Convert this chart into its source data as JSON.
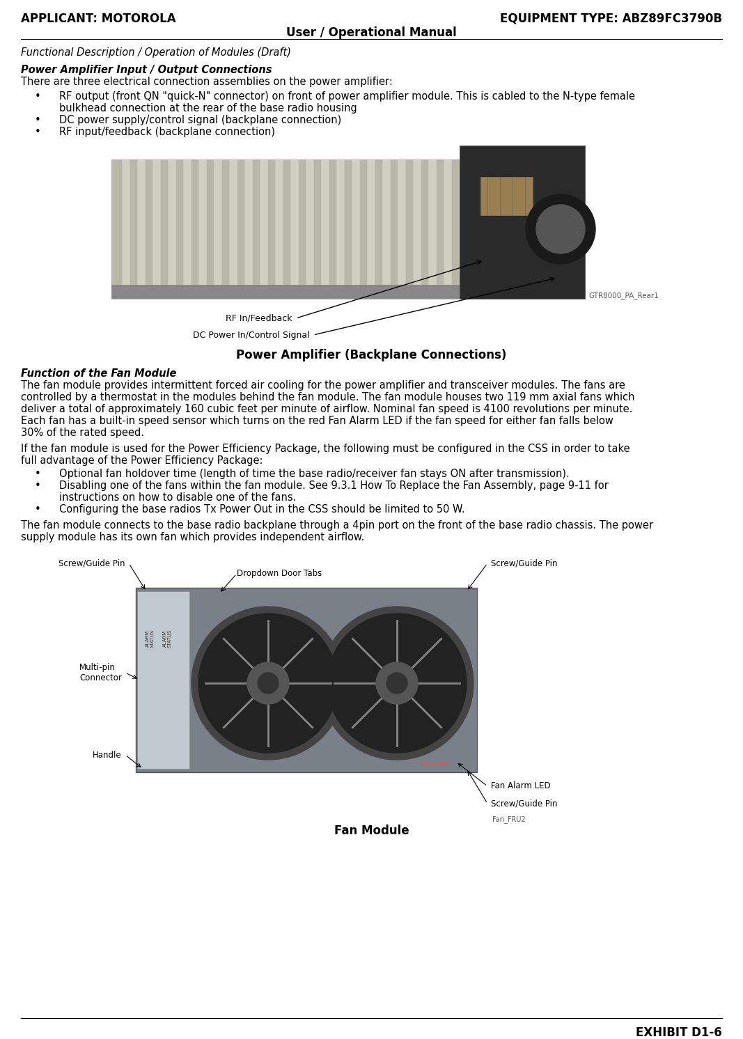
{
  "header_left": "APPLICANT: MOTOROLA",
  "header_right": "EQUIPMENT TYPE: ABZ89FC3790B",
  "header_center": "User / Operational Manual",
  "footer_right": "EXHIBIT D1-6",
  "section1_title": "Functional Description / Operation of Modules (Draft)",
  "section2_title": "Power Amplifier Input / Output Connections",
  "section2_intro": "There are three electrical connection assemblies on the power amplifier:",
  "section2_bullet1a": "RF output (front QN \"quick-N\" connector) on front of power amplifier module. This is cabled to the N-type female",
  "section2_bullet1b": "bulkhead connection at the rear of the base radio housing",
  "section2_bullet2": "DC power supply/control signal (backplane connection)",
  "section2_bullet3": "RF input/feedback (backplane connection)",
  "fig1_caption": "Power Amplifier (Backplane Connections)",
  "fig1_label1": "RF In/Feedback",
  "fig1_label2": "DC Power In/Control Signal",
  "fig1_ref": "GTR8000_PA_Rear1",
  "section3_title": "Function of the Fan Module",
  "section3_para1_lines": [
    "The fan module provides intermittent forced air cooling for the power amplifier and transceiver modules. The fans are",
    "controlled by a thermostat in the modules behind the fan module. The fan module houses two 119 mm axial fans which",
    "deliver a total of approximately 160 cubic feet per minute of airflow. Nominal fan speed is 4100 revolutions per minute.",
    "Each fan has a built-in speed sensor which turns on the red Fan Alarm LED if the fan speed for either fan falls below",
    "30% of the rated speed."
  ],
  "section3_para2_lines": [
    "If the fan module is used for the Power Efficiency Package, the following must be configured in the CSS in order to take",
    "full advantage of the Power Efficiency Package:"
  ],
  "section3_bullet1": "Optional fan holdover time (length of time the base radio/receiver fan stays ON after transmission).",
  "section3_bullet2a": "Disabling one of the fans within the fan module. See 9.3.1 How To Replace the Fan Assembly, page 9-11 for",
  "section3_bullet2b": "instructions on how to disable one of the fans.",
  "section3_bullet3": "Configuring the base radios Tx Power Out in the CSS should be limited to 50 W.",
  "section3_para3_lines": [
    "The fan module connects to the base radio backplane through a 4pin port on the front of the base radio chassis. The power",
    "supply module has its own fan which provides independent airflow."
  ],
  "fig2_caption": "Fan Module",
  "fig2_label_tl": "Screw/Guide Pin",
  "fig2_label_tc": "Dropdown Door Tabs",
  "fig2_label_tr": "Screw/Guide Pin",
  "fig2_label_ml": "Multi-pin\nConnector",
  "fig2_label_bl": "Handle",
  "fig2_label_br1": "Fan Alarm LED",
  "fig2_label_br2": "Screw/Guide Pin",
  "fig2_ref": "Fan_FRU2",
  "bg_color": "#ffffff",
  "text_color": "#000000",
  "body_fs": 10.5,
  "header_fs": 12,
  "caption_fs": 12,
  "small_fs": 8.5
}
